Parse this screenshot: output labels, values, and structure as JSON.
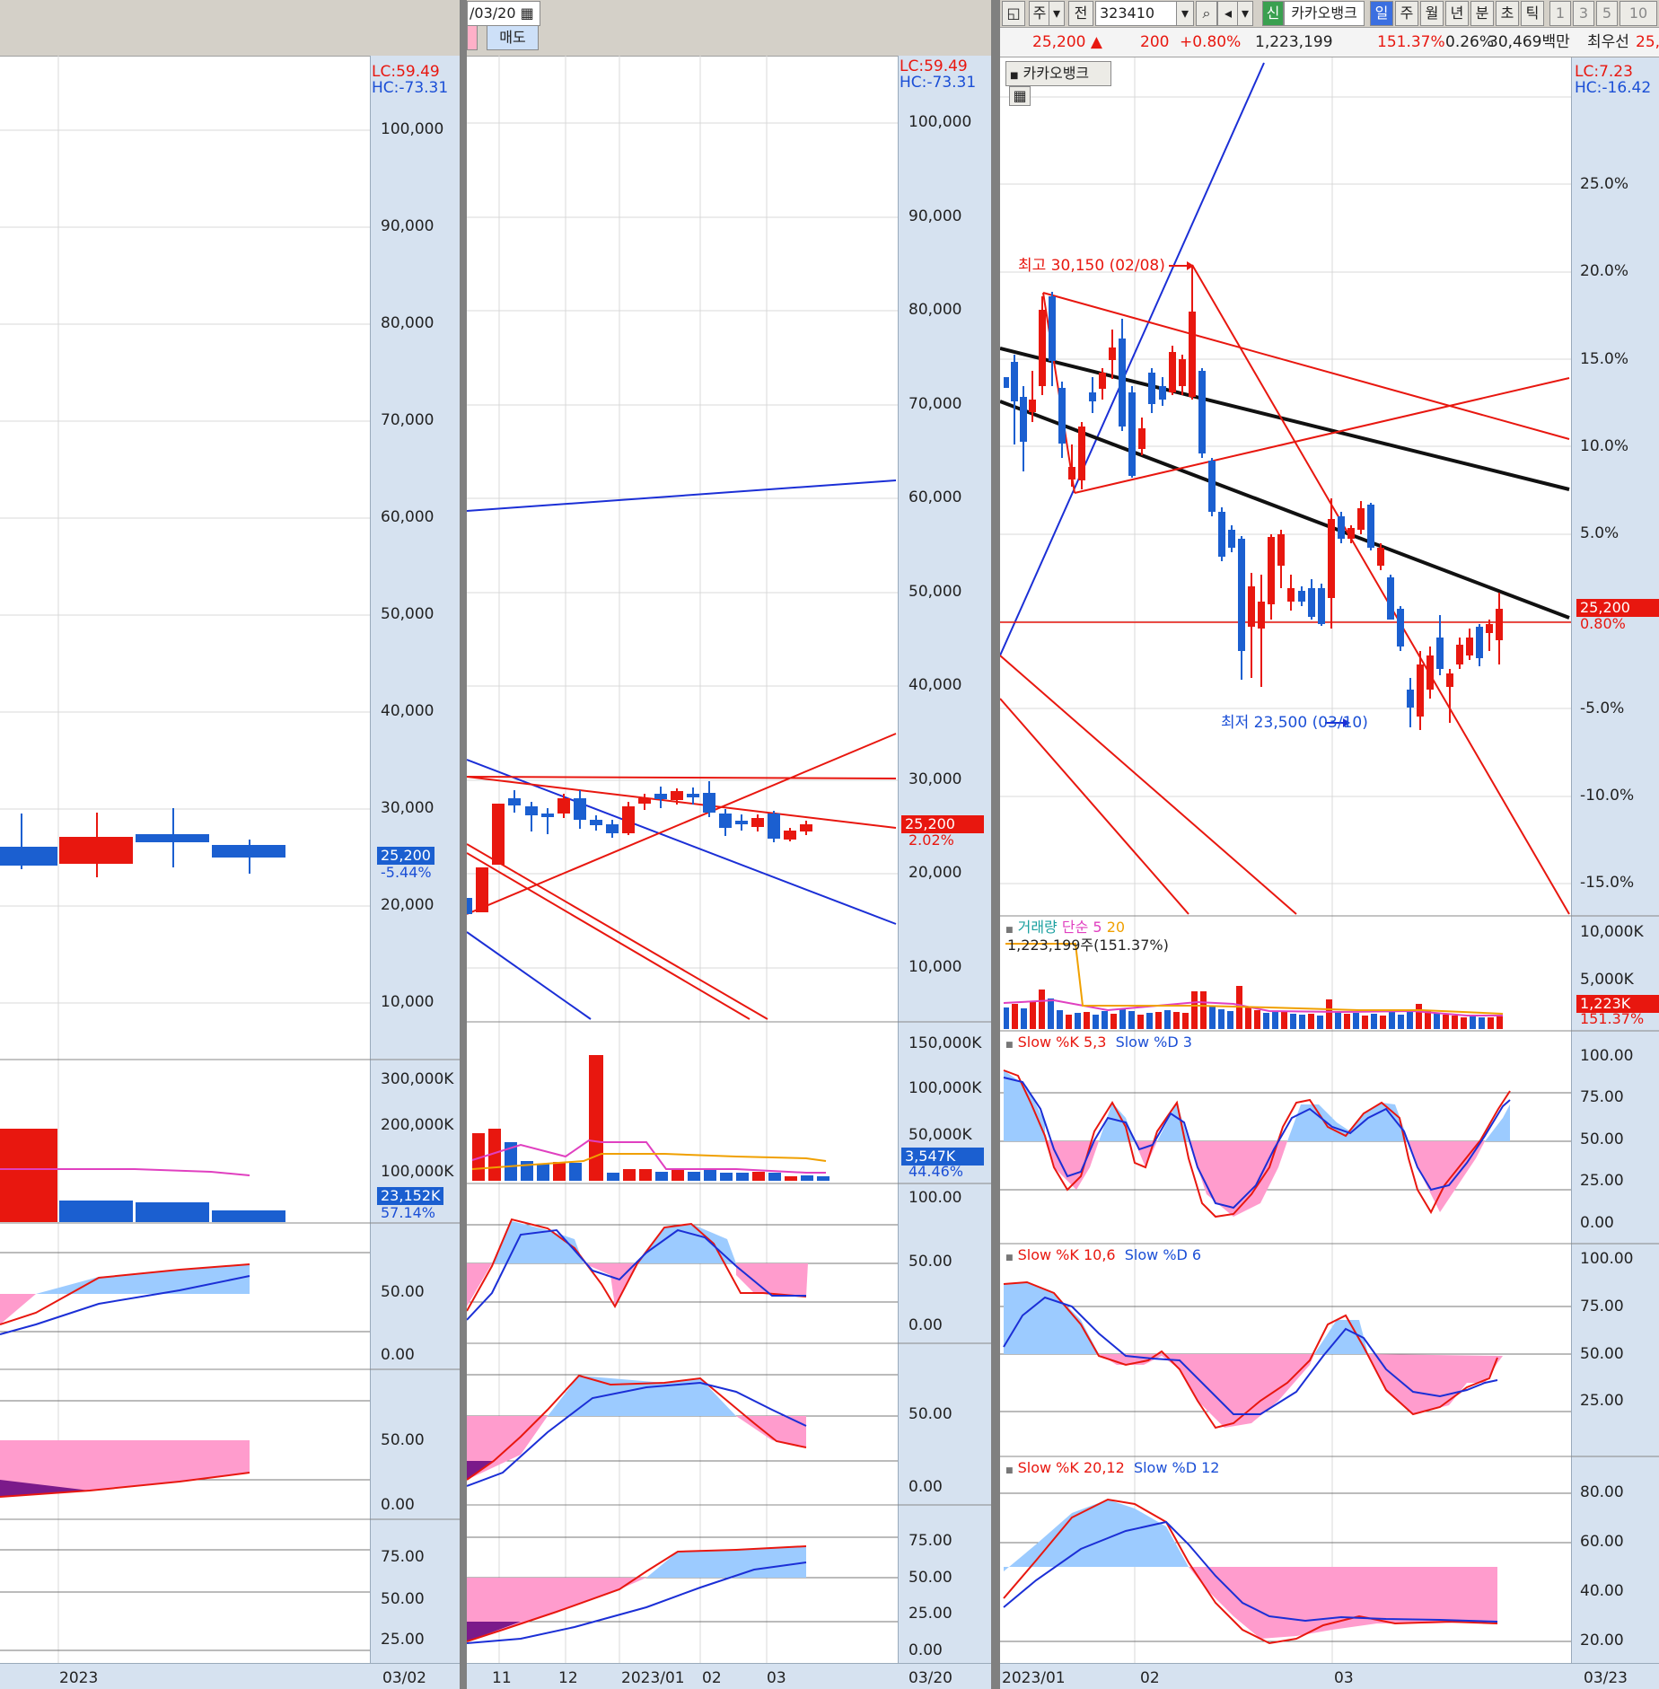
{
  "left_pane": {
    "lc": "LC:59.49",
    "hc": "HC:-73.31",
    "price_axis": [
      "100,000",
      "90,000",
      "80,000",
      "70,000",
      "60,000",
      "50,000",
      "40,000",
      "30,000",
      "20,000",
      "10,000"
    ],
    "price_tag": "25,200",
    "price_pct": "-5.44%",
    "vol_axis": [
      "300,000K",
      "200,000K",
      "100,000K"
    ],
    "vol_tag": "23,152K",
    "vol_pct": "57.14%",
    "osc1_axis": [
      "50.00",
      "0.00"
    ],
    "osc2_axis": [
      "50.00",
      "0.00"
    ],
    "osc3_axis": [
      "75.00",
      "50.00",
      "25.00"
    ],
    "x_label": "2023",
    "date_label": "03/02"
  },
  "mid_pane": {
    "date_field": "/03/20",
    "sell_label": "매도",
    "lc": "LC:59.49",
    "hc": "HC:-73.31",
    "price_axis": [
      "100,000",
      "90,000",
      "80,000",
      "70,000",
      "60,000",
      "50,000",
      "40,000",
      "30,000",
      "20,000",
      "10,000"
    ],
    "price_tag": "25,200",
    "price_pct": "2.02%",
    "vol_axis": [
      "150,000K",
      "100,000K",
      "50,000K"
    ],
    "vol_tag": "3,547K",
    "vol_pct": "44.46%",
    "osc1_axis": [
      "100.00",
      "50.00",
      "0.00"
    ],
    "osc2_axis": [
      "50.00",
      "0.00"
    ],
    "osc3_axis": [
      "75.00",
      "50.00",
      "25.00",
      "0.00"
    ],
    "x_labels": [
      "11",
      "12",
      "2023/01",
      "02",
      "03"
    ],
    "date_label": "03/20"
  },
  "right_pane": {
    "toolbar": {
      "period1": "주",
      "prev": "전",
      "code": "323410",
      "credit": "신",
      "name": "카카오뱅크",
      "tabs": [
        "일",
        "주",
        "월",
        "년",
        "분",
        "초",
        "틱"
      ],
      "nums": [
        "1",
        "3",
        "5",
        "10"
      ]
    },
    "quote": {
      "price": "25,200",
      "change": "200",
      "change_pct": "+0.80%",
      "volume": "1,223,199",
      "vol_ratio": "151.37%",
      "turnover": "0.26%",
      "amount": "30,469백만",
      "label": "최우선",
      "bid": "25,"
    },
    "chart_title": "카카오뱅크",
    "lc": "LC:7.23",
    "hc": "HC:-16.42",
    "pct_axis": [
      "25.0%",
      "20.0%",
      "15.0%",
      "10.0%",
      "5.0%",
      "-5.0%",
      "-10.0%",
      "-15.0%"
    ],
    "price_tag": "25,200",
    "price_pct": "0.80%",
    "high_note": "최고 30,150 (02/08)",
    "low_note": "최저 23,500 (03/10)",
    "vol_title": "거래량",
    "vol_ma1": "단순 5",
    "vol_ma2": "20",
    "vol_info": "1,223,199주(151.37%)",
    "vol_axis": [
      "10,000K",
      "5,000K"
    ],
    "vol_tag": "1,223K",
    "vol_pct": "151.37%",
    "stoch1": {
      "k": "Slow %K 5,3",
      "d": "Slow %D 3",
      "axis": [
        "100.00",
        "75.00",
        "50.00",
        "25.00",
        "0.00"
      ]
    },
    "stoch2": {
      "k": "Slow %K 10,6",
      "d": "Slow %D 6",
      "axis": [
        "100.00",
        "75.00",
        "50.00",
        "25.00"
      ]
    },
    "stoch3": {
      "k": "Slow %K 20,12",
      "d": "Slow %D 12",
      "axis": [
        "80.00",
        "60.00",
        "40.00",
        "20.00"
      ]
    },
    "x_labels": [
      "2023/01",
      "02",
      "03"
    ],
    "date_label": "03/23"
  },
  "colors": {
    "up": "#e8170f",
    "down": "#1b5fd0",
    "axis_bg": "#d6e2f0",
    "pink_fill": "#ff9ccd",
    "blue_fill": "#9ccbff"
  }
}
